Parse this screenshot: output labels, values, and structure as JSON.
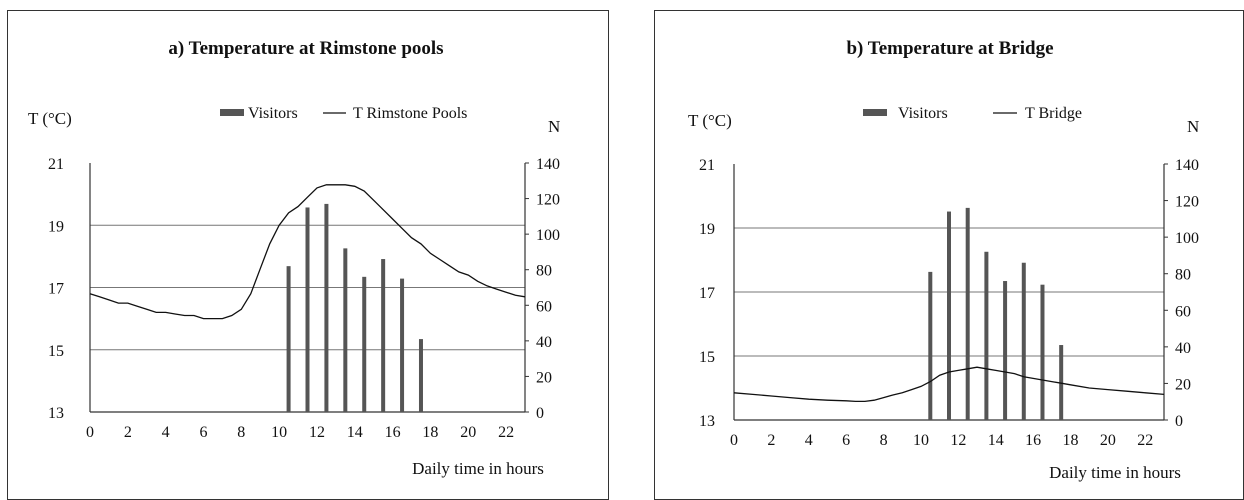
{
  "chart_data": [
    {
      "type": "bar+line",
      "title": "a) Temperature at Rimstone pools",
      "ylabel_left": "T (°C)",
      "ylabel_right": "N",
      "xlabel": "Daily time in hours",
      "x_ticks": [
        "0",
        "2",
        "4",
        "6",
        "8",
        "10",
        "12",
        "14",
        "16",
        "18",
        "20",
        "22"
      ],
      "y_left_ticks": [
        "13",
        "15",
        "17",
        "19",
        "21"
      ],
      "y_right_ticks": [
        "0",
        "20",
        "40",
        "60",
        "80",
        "100",
        "120",
        "140"
      ],
      "xlim": [
        0,
        23
      ],
      "ylim_left": [
        13,
        21
      ],
      "ylim_right": [
        0,
        140
      ],
      "grid_values_left": [
        15,
        17,
        19
      ],
      "legend": {
        "bar_label": "Visitors",
        "line_label": "T Rimstone Pools"
      },
      "bars": {
        "name": "Visitors",
        "x": [
          10.5,
          11.5,
          12.5,
          13.5,
          14.5,
          15.5,
          16.5,
          17.5
        ],
        "values": [
          82,
          115,
          117,
          92,
          76,
          86,
          75,
          41
        ]
      },
      "line": {
        "name": "T Rimstone Pools",
        "x": [
          0,
          0.5,
          1,
          1.5,
          2,
          2.5,
          3,
          3.5,
          4,
          4.5,
          5,
          5.5,
          6,
          6.5,
          7,
          7.5,
          8,
          8.5,
          9,
          9.5,
          10,
          10.5,
          11,
          11.5,
          12,
          12.5,
          13,
          13.5,
          14,
          14.5,
          15,
          15.5,
          16,
          16.5,
          17,
          17.5,
          18,
          18.5,
          19,
          19.5,
          20,
          20.5,
          21,
          21.5,
          22,
          22.5,
          23
        ],
        "values": [
          16.8,
          16.7,
          16.6,
          16.5,
          16.5,
          16.4,
          16.3,
          16.2,
          16.2,
          16.15,
          16.1,
          16.1,
          16.0,
          16.0,
          16.0,
          16.1,
          16.3,
          16.8,
          17.6,
          18.4,
          19.0,
          19.4,
          19.6,
          19.9,
          20.2,
          20.3,
          20.3,
          20.3,
          20.25,
          20.1,
          19.8,
          19.5,
          19.2,
          18.9,
          18.6,
          18.4,
          18.1,
          17.9,
          17.7,
          17.5,
          17.4,
          17.2,
          17.05,
          16.95,
          16.85,
          16.75,
          16.7
        ]
      },
      "colors": {
        "bar": "#555555",
        "line": "#111111",
        "grid": "#777777",
        "axis": "#333333"
      }
    },
    {
      "type": "bar+line",
      "title": "b) Temperature at Bridge",
      "ylabel_left": "T (°C)",
      "ylabel_right": "N",
      "xlabel": "Daily time in hours",
      "x_ticks": [
        "0",
        "2",
        "4",
        "6",
        "8",
        "10",
        "12",
        "14",
        "16",
        "18",
        "20",
        "22"
      ],
      "y_left_ticks": [
        "13",
        "15",
        "17",
        "19",
        "21"
      ],
      "y_right_ticks": [
        "0",
        "20",
        "40",
        "60",
        "80",
        "100",
        "120",
        "140"
      ],
      "xlim": [
        0,
        23
      ],
      "ylim_left": [
        13,
        21
      ],
      "ylim_right": [
        0,
        140
      ],
      "grid_values_left": [
        15,
        17,
        19
      ],
      "legend": {
        "bar_label": "Visitors",
        "line_label": "T Bridge"
      },
      "bars": {
        "name": "Visitors",
        "x": [
          10.5,
          11.5,
          12.5,
          13.5,
          14.5,
          15.5,
          16.5,
          17.5
        ],
        "values": [
          81,
          114,
          116,
          92,
          76,
          86,
          74,
          41
        ]
      },
      "line": {
        "name": "T Bridge",
        "x": [
          0,
          1,
          2,
          3,
          4,
          5,
          6,
          6.5,
          7,
          7.5,
          8,
          8.5,
          9,
          9.5,
          10,
          10.5,
          11,
          11.5,
          12,
          12.5,
          13,
          13.5,
          14,
          14.5,
          15,
          15.5,
          16,
          16.5,
          17,
          17.5,
          18,
          19,
          20,
          21,
          22,
          23
        ],
        "values": [
          13.85,
          13.8,
          13.75,
          13.7,
          13.65,
          13.62,
          13.6,
          13.58,
          13.58,
          13.62,
          13.7,
          13.78,
          13.85,
          13.95,
          14.05,
          14.2,
          14.4,
          14.5,
          14.55,
          14.6,
          14.65,
          14.6,
          14.55,
          14.5,
          14.45,
          14.35,
          14.3,
          14.25,
          14.2,
          14.15,
          14.1,
          14.0,
          13.95,
          13.9,
          13.85,
          13.8
        ]
      },
      "colors": {
        "bar": "#555555",
        "line": "#111111",
        "grid": "#777777",
        "axis": "#333333"
      }
    }
  ]
}
